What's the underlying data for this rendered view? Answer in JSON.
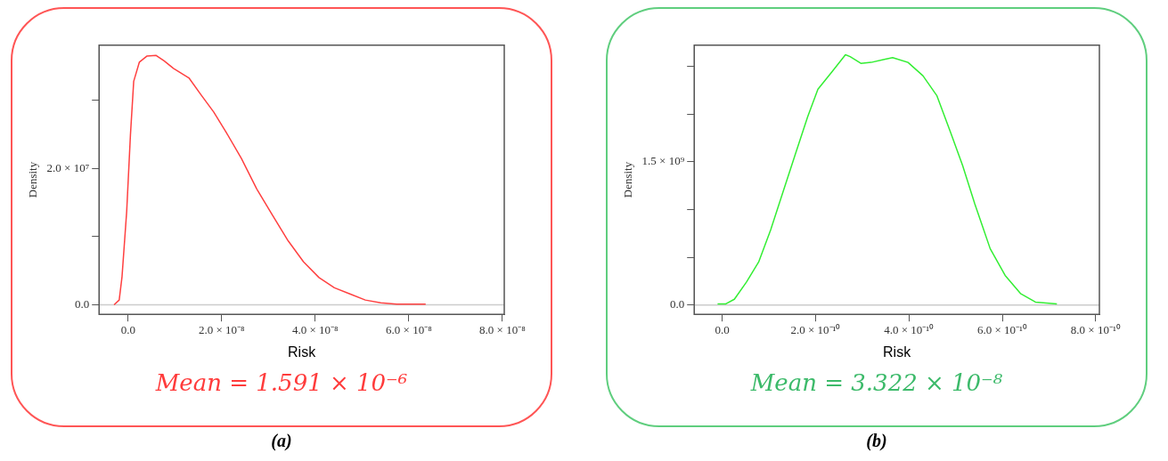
{
  "chart_data": [
    {
      "type": "line",
      "xlabel": "Risk",
      "ylabel": "Density",
      "annotations": [
        "Mean = 1.591 × 10⁻⁶",
        "(a)"
      ],
      "series": [
        {
          "color": "#ff4040",
          "x": [
            -3e-09,
            -1.9e-09,
            -1.3e-09,
            -3e-10,
            5e-10,
            1.2e-09,
            2.4e-09,
            4e-09,
            6e-09,
            7.7e-09,
            9.7e-09,
            1.3e-08,
            1.56e-08,
            1.83e-08,
            2.09e-08,
            2.42e-08,
            2.75e-08,
            3.09e-08,
            3.42e-08,
            3.75e-08,
            4.08e-08,
            4.41e-08,
            4.74e-08,
            5.07e-08,
            5.4e-08,
            5.74e-08,
            6.36e-08
          ],
          "values": [
            0,
            700000.0,
            4100000.0,
            13700000.0,
            24900000.0,
            32800000.0,
            35600000.0,
            36500000.0,
            36600000.0,
            35800000.0,
            34700000.0,
            33300000.0,
            30800000.0,
            28300000.0,
            25400000.0,
            21500000.0,
            17000000.0,
            13100000.0,
            9400000.0,
            6300000.0,
            4000000.0,
            2500000.0,
            1600000.0,
            700000.0,
            300000.0,
            100000.0,
            100000.0
          ]
        }
      ],
      "xlim": [
        -6.2e-09,
        8.04e-08
      ],
      "ylim": [
        -1400000.0,
        38100000.0
      ],
      "xticks": [
        {
          "value": 0,
          "label": "0.0"
        },
        {
          "value": 2e-08,
          "label": "2.0 × 10⁻⁸"
        },
        {
          "value": 4e-08,
          "label": "4.0 × 10⁻⁸"
        },
        {
          "value": 6e-08,
          "label": "6.0 × 10⁻⁸"
        },
        {
          "value": 8e-08,
          "label": "8.0 × 10⁻⁸"
        }
      ],
      "yticks": [
        {
          "value": 0,
          "label": "0.0"
        },
        {
          "value": 10000000.0,
          "label": null
        },
        {
          "value": 20000000.0,
          "label": "2.0 × 10⁷"
        },
        {
          "value": 30000000.0,
          "label": null
        }
      ],
      "ref_lines": [
        {
          "axis": "y",
          "value": 0,
          "color": "#cccccc"
        }
      ],
      "grid": false,
      "legend": false,
      "marker": "none",
      "line_style": "solid"
    },
    {
      "type": "line",
      "xlabel": "Risk",
      "ylabel": "Density",
      "annotations": [
        "Mean = 3.322 × 10⁻⁸",
        "(b)"
      ],
      "series": [
        {
          "color": "#33ee33",
          "x": [
            -1e-11,
            7e-12,
            2.6e-11,
            5.2e-11,
            7.8e-11,
            1.04e-10,
            1.3e-10,
            1.56e-10,
            1.83e-10,
            2.05e-10,
            2.35e-10,
            2.64e-10,
            2.74e-10,
            2.97e-10,
            3.19e-10,
            3.45e-10,
            3.65e-10,
            3.98e-10,
            4.3e-10,
            4.6e-10,
            4.89e-10,
            5.15e-10,
            5.41e-10,
            5.74e-10,
            6.06e-10,
            6.39e-10,
            6.71e-10,
            7.17e-10
          ],
          "values": [
            10000000.0,
            10000000.0,
            60000000.0,
            240000000.0,
            450000000.0,
            790000000.0,
            1180000000.0,
            1570000000.0,
            1970000000.0,
            2260000000.0,
            2440000000.0,
            2620000000.0,
            2600000000.0,
            2530000000.0,
            2540000000.0,
            2570000000.0,
            2590000000.0,
            2540000000.0,
            2400000000.0,
            2190000000.0,
            1810000000.0,
            1460000000.0,
            1060000000.0,
            590000000.0,
            310000000.0,
            120000000.0,
            30000000.0,
            10000000.0
          ]
        }
      ],
      "xlim": [
        -6e-11,
        8.08e-10
      ],
      "ylim": [
        -98000000.0,
        2720000000.0
      ],
      "xticks": [
        {
          "value": 0,
          "label": "0.0"
        },
        {
          "value": 2e-10,
          "label": "2.0 × 10⁻¹⁰"
        },
        {
          "value": 4e-10,
          "label": "4.0 × 10⁻¹⁰"
        },
        {
          "value": 6e-10,
          "label": "6.0 × 10⁻¹⁰"
        },
        {
          "value": 8e-10,
          "label": "8.0 × 10⁻¹⁰"
        }
      ],
      "yticks": [
        {
          "value": 0,
          "label": "0.0"
        },
        {
          "value": 500000000.0,
          "label": null
        },
        {
          "value": 1000000000.0,
          "label": null
        },
        {
          "value": 1500000000.0,
          "label": "1.5 × 10⁹"
        },
        {
          "value": 2000000000.0,
          "label": null
        },
        {
          "value": 2500000000.0,
          "label": null
        }
      ],
      "ref_lines": [
        {
          "axis": "y",
          "value": 0,
          "color": "#cccccc"
        }
      ],
      "grid": false,
      "legend": false,
      "marker": "none",
      "line_style": "solid"
    }
  ]
}
